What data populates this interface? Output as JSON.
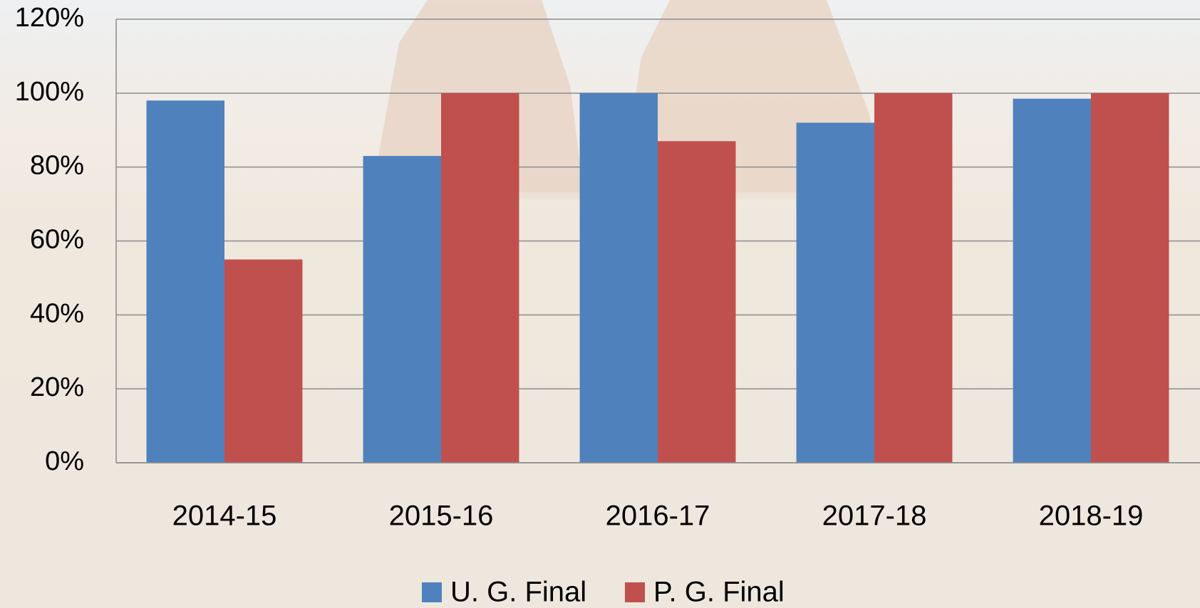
{
  "chart_data": {
    "type": "bar",
    "categories": [
      "2014-15",
      "2015-16",
      "2016-17",
      "2017-18",
      "2018-19"
    ],
    "series": [
      {
        "name": "U. G. Final",
        "color": "#4f81bd",
        "values": [
          98,
          83,
          100,
          92,
          98.5
        ]
      },
      {
        "name": "P. G. Final",
        "color": "#c0504d",
        "values": [
          55,
          100,
          87,
          100,
          100
        ]
      }
    ],
    "ylim": [
      0,
      120
    ],
    "yticks": [
      {
        "value": 0,
        "label": "0%"
      },
      {
        "value": 20,
        "label": "20%"
      },
      {
        "value": 40,
        "label": "40%"
      },
      {
        "value": 60,
        "label": "60%"
      },
      {
        "value": 80,
        "label": "80%"
      },
      {
        "value": 100,
        "label": "100%"
      },
      {
        "value": 120,
        "label": "120%"
      }
    ],
    "grid": true,
    "legend": "bottom"
  }
}
